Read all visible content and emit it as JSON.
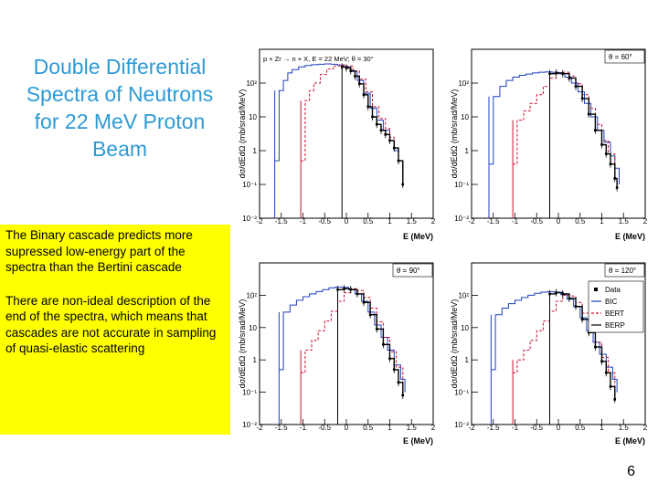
{
  "title_lines": [
    "Double Differential",
    "Spectra of Neutrons",
    "for 22 MeV Proton",
    "Beam"
  ],
  "note": {
    "p1": "The Binary cascade predicts more supressed low-energy part of the spectra than the Bertini cascade",
    "p2": "There are non-ideal description of the end of the spectra, which means that cascades are not accurate in sampling of quasi-elastic scattering"
  },
  "page_number": "6",
  "colors": {
    "title": "#2e9ad6",
    "highlight": "#ffff00",
    "data": "#000000",
    "bic": "#1f3fbf",
    "bert": "#c8102e",
    "berp": "#000000"
  },
  "chart_data": [
    {
      "type": "line",
      "header": "p + Zr → n + X, E = 22 MeV;    θ = 30°",
      "angle_label": "",
      "xlabel": "E (MeV)",
      "ylabel": "dσ/dEdΩ (mb/srad/MeV)",
      "xscale": "log10(E)",
      "yscale": "log",
      "xlim": [
        -2,
        2
      ],
      "ylim": [
        0.01,
        1000
      ],
      "xticks": [
        "-2",
        "-1.5",
        "-1",
        "-0.5",
        "0",
        "0.5",
        "1",
        "1.5",
        "2"
      ],
      "yticks": [
        "10⁻²",
        "10⁻¹",
        "1",
        "10",
        "10²"
      ],
      "series": [
        {
          "key": "bic",
          "x": [
            -1.65,
            -1.55,
            -1.45,
            -1.35,
            -1.25,
            -1.1,
            -0.95,
            -0.8,
            -0.65,
            -0.5,
            -0.35,
            -0.2,
            -0.05,
            0.1,
            0.25,
            0.4,
            0.55,
            0.7,
            0.85,
            1.0,
            1.1,
            1.2,
            1.3
          ],
          "y": [
            0.5,
            60,
            120,
            200,
            250,
            300,
            330,
            350,
            360,
            370,
            360,
            340,
            300,
            220,
            120,
            50,
            18,
            8,
            4,
            2,
            1,
            0.5,
            0.2
          ]
        },
        {
          "key": "bert",
          "x": [
            -1.05,
            -0.95,
            -0.85,
            -0.75,
            -0.6,
            -0.45,
            -0.3,
            -0.15,
            0.0,
            0.15,
            0.3,
            0.45,
            0.6,
            0.75,
            0.9,
            1.0,
            1.1,
            1.2,
            1.3
          ],
          "y": [
            0.5,
            30,
            60,
            100,
            180,
            260,
            320,
            340,
            320,
            230,
            130,
            55,
            20,
            9,
            4.5,
            2.5,
            1.2,
            0.5,
            0.2
          ]
        },
        {
          "key": "data",
          "x": [
            -0.1,
            0.0,
            0.1,
            0.2,
            0.3,
            0.4,
            0.5,
            0.6,
            0.7,
            0.8,
            0.9,
            1.0,
            1.1,
            1.2,
            1.3
          ],
          "y": [
            300,
            280,
            230,
            160,
            95,
            45,
            20,
            10,
            6,
            4,
            3,
            2,
            1.2,
            0.5,
            0.1
          ]
        }
      ]
    },
    {
      "type": "line",
      "header": "",
      "angle_label": "θ = 60°",
      "xlabel": "E (MeV)",
      "ylabel": "dσ/dEdΩ (mb/srad/MeV)",
      "xscale": "log10(E)",
      "yscale": "log",
      "xlim": [
        -2,
        2
      ],
      "ylim": [
        0.01,
        1000
      ],
      "xticks": [
        "-2",
        "-1.5",
        "-1",
        "-0.5",
        "0",
        "0.5",
        "1",
        "1.5",
        "2"
      ],
      "yticks": [
        "10⁻²",
        "10⁻¹",
        "1",
        "10",
        "10²"
      ],
      "series": [
        {
          "key": "bic",
          "x": [
            -1.6,
            -1.5,
            -1.35,
            -1.2,
            -1.05,
            -0.9,
            -0.75,
            -0.6,
            -0.45,
            -0.3,
            -0.15,
            0.0,
            0.15,
            0.3,
            0.45,
            0.6,
            0.75,
            0.9,
            1.05,
            1.2,
            1.3,
            1.4
          ],
          "y": [
            0.4,
            40,
            80,
            120,
            150,
            170,
            185,
            200,
            210,
            215,
            210,
            190,
            150,
            100,
            55,
            25,
            10,
            4,
            1.8,
            0.7,
            0.3,
            0.1
          ]
        },
        {
          "key": "bert",
          "x": [
            -1.05,
            -0.95,
            -0.8,
            -0.65,
            -0.5,
            -0.35,
            -0.2,
            -0.05,
            0.1,
            0.25,
            0.4,
            0.55,
            0.7,
            0.85,
            1.0,
            1.15,
            1.3
          ],
          "y": [
            0.4,
            8,
            15,
            25,
            45,
            80,
            140,
            200,
            210,
            160,
            95,
            45,
            18,
            6,
            2,
            0.8,
            0.3
          ]
        },
        {
          "key": "data",
          "x": [
            -0.2,
            -0.05,
            0.1,
            0.25,
            0.4,
            0.55,
            0.7,
            0.85,
            1.0,
            1.1,
            1.2,
            1.3,
            1.35
          ],
          "y": [
            190,
            200,
            190,
            140,
            80,
            35,
            12,
            4,
            1.5,
            0.8,
            0.4,
            0.15,
            0.08
          ]
        }
      ]
    },
    {
      "type": "line",
      "header": "",
      "angle_label": "θ = 90°",
      "xlabel": "E (MeV)",
      "ylabel": "dσ/dEdΩ (mb/srad/MeV)",
      "xscale": "log10(E)",
      "yscale": "log",
      "xlim": [
        -2,
        2
      ],
      "ylim": [
        0.01,
        1000
      ],
      "xticks": [
        "-2",
        "-1.5",
        "-1",
        "-0.5",
        "0",
        "0.5",
        "1",
        "1.5",
        "2"
      ],
      "yticks": [
        "10⁻²",
        "10⁻¹",
        "1",
        "10",
        "10²"
      ],
      "series": [
        {
          "key": "bic",
          "x": [
            -1.55,
            -1.45,
            -1.3,
            -1.15,
            -1.0,
            -0.85,
            -0.7,
            -0.55,
            -0.4,
            -0.25,
            -0.1,
            0.05,
            0.2,
            0.35,
            0.5,
            0.65,
            0.8,
            0.95,
            1.1,
            1.25,
            1.35
          ],
          "y": [
            0.5,
            30,
            50,
            70,
            90,
            110,
            130,
            150,
            170,
            180,
            175,
            150,
            110,
            65,
            30,
            12,
            5,
            2,
            0.7,
            0.25,
            0.1
          ]
        },
        {
          "key": "bert",
          "x": [
            -1.05,
            -0.95,
            -0.8,
            -0.65,
            -0.5,
            -0.35,
            -0.2,
            -0.05,
            0.1,
            0.25,
            0.4,
            0.55,
            0.7,
            0.85,
            1.0,
            1.15,
            1.3
          ],
          "y": [
            0.4,
            2,
            4,
            8,
            16,
            32,
            65,
            120,
            160,
            140,
            85,
            40,
            15,
            5,
            1.8,
            0.6,
            0.2
          ]
        },
        {
          "key": "data",
          "x": [
            -0.2,
            -0.05,
            0.1,
            0.25,
            0.4,
            0.55,
            0.7,
            0.85,
            1.0,
            1.1,
            1.2,
            1.3
          ],
          "y": [
            150,
            160,
            150,
            110,
            60,
            25,
            9,
            3,
            1.1,
            0.5,
            0.2,
            0.08
          ]
        }
      ]
    },
    {
      "type": "line",
      "header": "",
      "angle_label": "θ = 120°",
      "xlabel": "E (MeV)",
      "ylabel": "dσ/dEdΩ (mb/srad/MeV)",
      "xscale": "log10(E)",
      "yscale": "log",
      "xlim": [
        -2,
        2
      ],
      "ylim": [
        0.01,
        1000
      ],
      "xticks": [
        "-2",
        "-1.5",
        "-1",
        "-0.5",
        "0",
        "0.5",
        "1",
        "1.5",
        "2"
      ],
      "yticks": [
        "10⁻²",
        "10⁻¹",
        "1",
        "10",
        "10²"
      ],
      "legend": [
        "Data",
        "BIC",
        "BERT",
        "BERP"
      ],
      "series": [
        {
          "key": "bic",
          "x": [
            -1.55,
            -1.45,
            -1.3,
            -1.15,
            -1.0,
            -0.85,
            -0.7,
            -0.55,
            -0.4,
            -0.25,
            -0.1,
            0.05,
            0.2,
            0.35,
            0.5,
            0.65,
            0.8,
            0.95,
            1.1,
            1.25,
            1.35
          ],
          "y": [
            0.5,
            25,
            40,
            55,
            70,
            85,
            100,
            115,
            125,
            130,
            125,
            105,
            75,
            45,
            20,
            8,
            3.5,
            1.5,
            0.6,
            0.25,
            0.1
          ]
        },
        {
          "key": "bert",
          "x": [
            -1.05,
            -0.95,
            -0.8,
            -0.65,
            -0.5,
            -0.35,
            -0.2,
            -0.05,
            0.1,
            0.25,
            0.4,
            0.55,
            0.7,
            0.85,
            1.0,
            1.15,
            1.3
          ],
          "y": [
            0.4,
            1,
            2,
            4,
            8,
            16,
            32,
            65,
            100,
            95,
            60,
            28,
            10,
            3.5,
            1.2,
            0.4,
            0.15
          ]
        },
        {
          "key": "data",
          "x": [
            -0.2,
            -0.05,
            0.1,
            0.25,
            0.4,
            0.55,
            0.7,
            0.85,
            1.0,
            1.1,
            1.2,
            1.3
          ],
          "y": [
            110,
            120,
            110,
            80,
            45,
            18,
            7,
            2.5,
            0.9,
            0.4,
            0.15,
            0.06
          ]
        }
      ]
    }
  ]
}
